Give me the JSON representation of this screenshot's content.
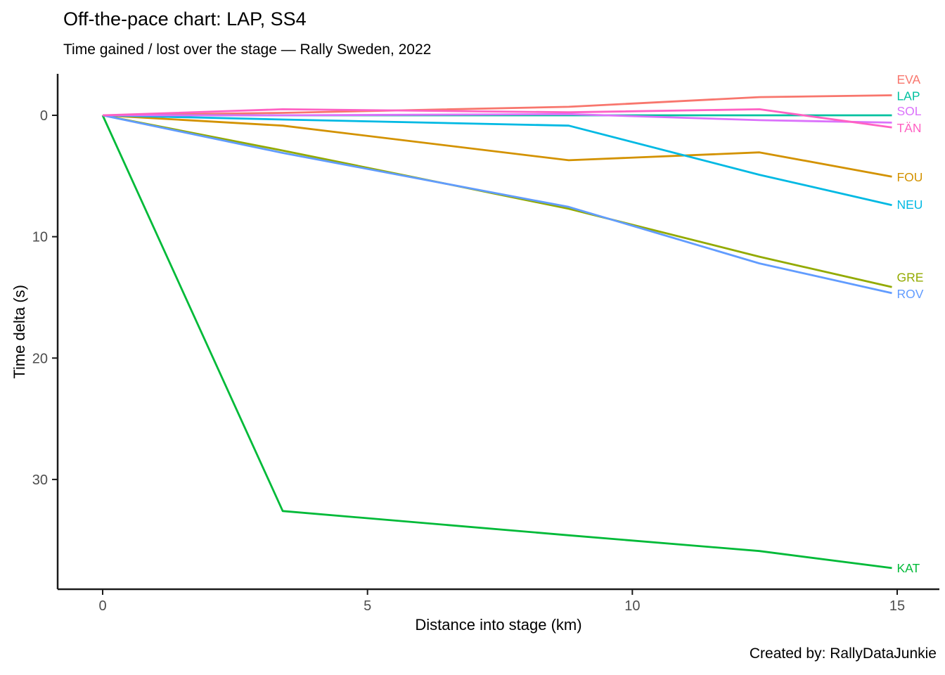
{
  "chart_data": {
    "type": "line",
    "title": "Off-the-pace chart: LAP, SS4",
    "subtitle": "Time gained / lost over the stage — Rally Sweden, 2022",
    "caption": "Created by: RallyDataJunkie",
    "xlabel": "Distance into stage (km)",
    "ylabel": "Time delta (s)",
    "x": [
      0,
      3.4,
      8.8,
      12.4,
      14.9
    ],
    "x_ticks": [
      0,
      5,
      10,
      15
    ],
    "y_ticks": [
      0,
      10,
      20,
      30
    ],
    "xlim": [
      -0.85,
      15.8
    ],
    "ylim": [
      -3.4,
      39.1
    ],
    "y_axis_inverted": true,
    "grid": false,
    "legend_position": "direct labels at right line ends",
    "axis_color": "#1a1a1a",
    "tick_label_color": "#4d4d4d",
    "series": [
      {
        "name": "EVA",
        "color": "#F8766D",
        "values": [
          0,
          -0.2,
          -0.7,
          -1.5,
          -1.65
        ],
        "label_y": -2.95
      },
      {
        "name": "FOU",
        "color": "#D39200",
        "values": [
          0,
          0.85,
          3.7,
          3.05,
          5.05
        ],
        "label_y": 5.1
      },
      {
        "name": "GRE",
        "color": "#93AA00",
        "values": [
          0,
          2.9,
          7.7,
          11.65,
          14.15
        ],
        "label_y": 13.35
      },
      {
        "name": "KAT",
        "color": "#00BA38",
        "values": [
          0,
          32.6,
          34.6,
          35.9,
          37.3
        ],
        "label_y": 37.3
      },
      {
        "name": "LAP",
        "color": "#00C19F",
        "values": [
          0,
          0,
          0,
          0,
          0
        ],
        "label_y": -1.6
      },
      {
        "name": "NEU",
        "color": "#00B9E3",
        "values": [
          0,
          0.35,
          0.85,
          4.9,
          7.4
        ],
        "label_y": 7.35
      },
      {
        "name": "ROV",
        "color": "#619CFF",
        "values": [
          0,
          3.1,
          7.55,
          12.2,
          14.65
        ],
        "label_y": 14.7
      },
      {
        "name": "SOL",
        "color": "#DB72FB",
        "values": [
          0,
          0,
          -0.1,
          0.4,
          0.6
        ],
        "label_y": -0.35
      },
      {
        "name": "TÄN",
        "color": "#FF61C3",
        "values": [
          0,
          -0.5,
          -0.25,
          -0.5,
          1.0
        ],
        "label_y": 1.05
      }
    ]
  }
}
